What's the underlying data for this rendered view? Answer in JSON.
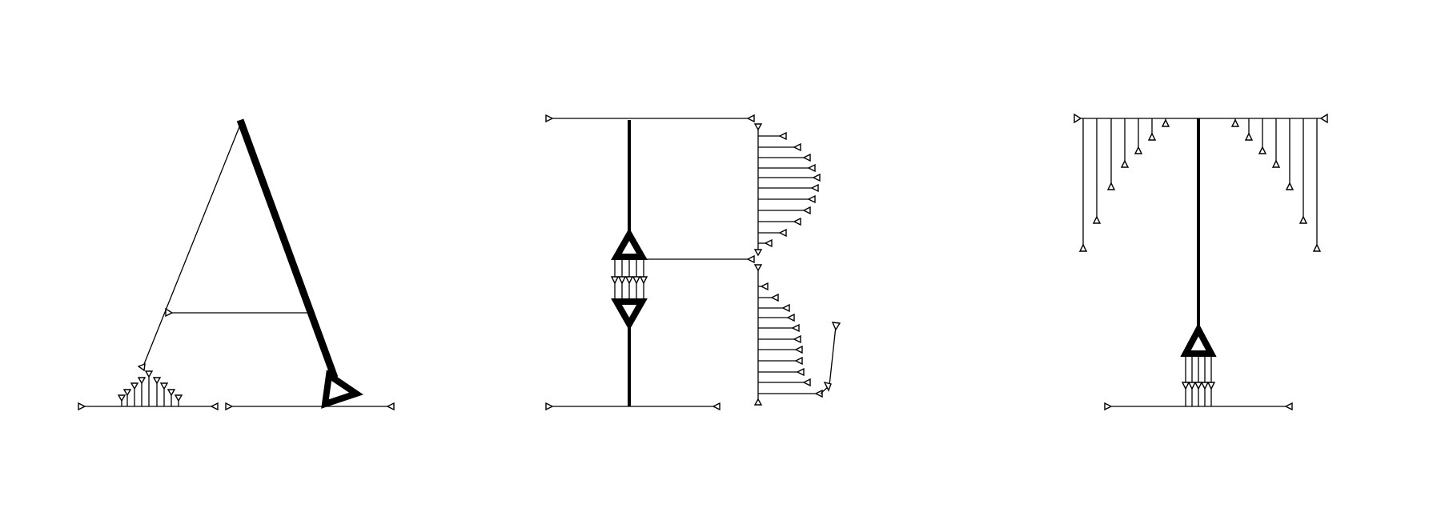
{
  "artwork": {
    "letters": [
      "A",
      "R",
      "T"
    ],
    "stroke_color": "#000000",
    "background": "#ffffff",
    "marker_icon": "triangle-arrowhead-icon"
  }
}
